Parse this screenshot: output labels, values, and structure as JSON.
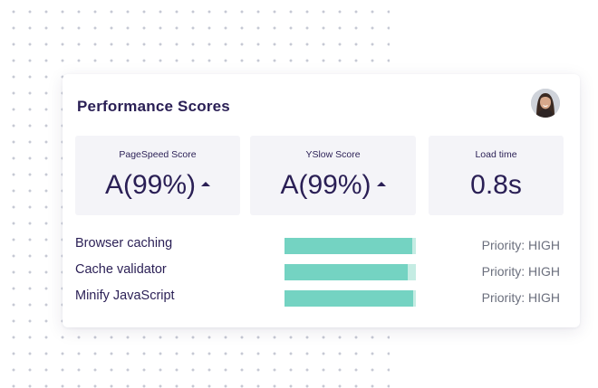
{
  "card": {
    "title": "Performance Scores"
  },
  "scores": [
    {
      "label": "PageSpeed Score",
      "value": "A(99%)",
      "trend": "up"
    },
    {
      "label": "YSlow Score",
      "value": "A(99%)",
      "trend": "up"
    },
    {
      "label": "Load time",
      "value": "0.8s"
    }
  ],
  "recommendations": [
    {
      "label": "Browser caching",
      "progress": 0.97,
      "priority": "Priority: HIGH"
    },
    {
      "label": "Cache validator",
      "progress": 0.94,
      "priority": "Priority: HIGH"
    },
    {
      "label": "Minify JavaScript",
      "progress": 0.98,
      "priority": "Priority: HIGH"
    }
  ],
  "colors": {
    "title": "#2a1f55",
    "bar_fill": "#74d3c2",
    "bar_track": "#c5ece3",
    "score_box_bg": "#f4f4f8",
    "priority_text": "#6b6f7d"
  },
  "icons": {
    "trend": "caret-up-icon",
    "avatar": "user-avatar-photo"
  }
}
